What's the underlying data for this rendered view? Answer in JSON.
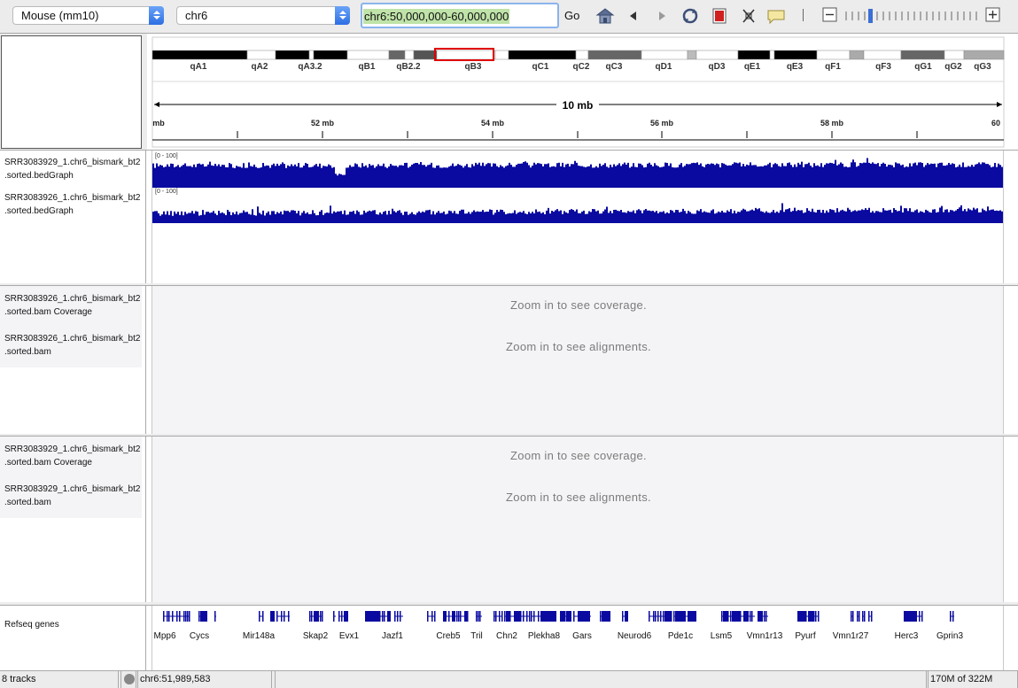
{
  "toolbar": {
    "genome": "Mouse (mm10)",
    "chromosome": "chr6",
    "locus": "chr6:50,000,000-60,000,000",
    "go_label": "Go"
  },
  "ideogram": {
    "bands": [
      "qA1",
      "qA2",
      "qA3.2",
      "qB1",
      "qB2.2",
      "qB3",
      "qC1",
      "qC2",
      "qC3",
      "qD1",
      "qD3",
      "qE1",
      "qE3",
      "qF1",
      "qF3",
      "qG1",
      "qG2",
      "qG3"
    ],
    "selection_start_mb": 50,
    "selection_end_mb": 60
  },
  "ruler": {
    "span_label": "10 mb",
    "ticks": [
      "mb",
      "52 mb",
      "54 mb",
      "56 mb",
      "58 mb",
      "60"
    ]
  },
  "tracks": {
    "bedgraph1": {
      "name1": "SRR3083929_1.chr6_bismark_bt2",
      "name2": ".sorted.bedGraph",
      "range": "[0 - 100]"
    },
    "bedgraph2": {
      "name1": "SRR3083926_1.chr6_bismark_bt2",
      "name2": ".sorted.bedGraph",
      "range": "[0 - 100]"
    },
    "bam1": {
      "cov1": "SRR3083926_1.chr6_bismark_bt2",
      "cov2": ".sorted.bam Coverage",
      "aln1": "SRR3083926_1.chr6_bismark_bt2",
      "aln2": ".sorted.bam"
    },
    "bam2": {
      "cov1": "SRR3083929_1.chr6_bismark_bt2",
      "cov2": ".sorted.bam Coverage",
      "aln1": "SRR3083929_1.chr6_bismark_bt2",
      "aln2": ".sorted.bam"
    },
    "zoom_coverage": "Zoom in to see coverage.",
    "zoom_alignments": "Zoom in to see alignments.",
    "refseq_name": "Refseq genes",
    "genes": [
      "Mpp6",
      "Cycs",
      "Mir148a",
      "Skap2",
      "Evx1",
      "Jazf1",
      "Creb5",
      "Tril",
      "Chn2",
      "Plekha8",
      "Gars",
      "Neurod6",
      "Pde1c",
      "Lsm5",
      "Vmn1r13",
      "Pyurf",
      "Vmn1r27",
      "Herc3",
      "Gprin3"
    ]
  },
  "status": {
    "tracks": "8 tracks",
    "position": "chr6:51,989,583",
    "memory": "170M of 322M"
  },
  "colors": {
    "data": "#0a0aa0",
    "selection": "#e00000",
    "locus_highlight": "#bfe3a8"
  }
}
